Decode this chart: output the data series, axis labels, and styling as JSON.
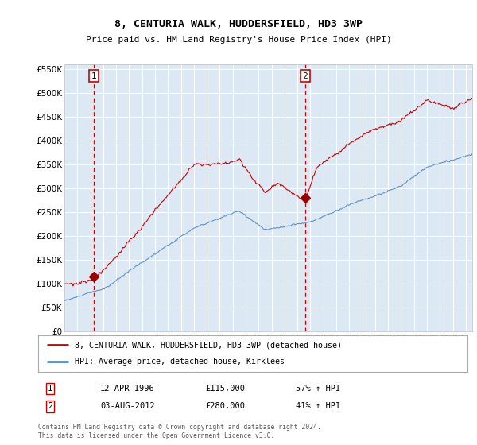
{
  "title": "8, CENTURIA WALK, HUDDERSFIELD, HD3 3WP",
  "subtitle": "Price paid vs. HM Land Registry's House Price Index (HPI)",
  "ylim": [
    0,
    560000
  ],
  "yticks": [
    0,
    50000,
    100000,
    150000,
    200000,
    250000,
    300000,
    350000,
    400000,
    450000,
    500000,
    550000
  ],
  "sale1": {
    "date_num": 1996.28,
    "price": 115000,
    "label": "1",
    "pct": "57% ↑ HPI",
    "date_str": "12-APR-1996"
  },
  "sale2": {
    "date_num": 2012.59,
    "price": 280000,
    "label": "2",
    "pct": "41% ↑ HPI",
    "date_str": "03-AUG-2012"
  },
  "line1_color": "#cc0000",
  "line2_color": "#5588bb",
  "vline_color": "#cc0000",
  "marker_color": "#990000",
  "box_color": "#cc0000",
  "legend_line1": "8, CENTURIA WALK, HUDDERSFIELD, HD3 3WP (detached house)",
  "legend_line2": "HPI: Average price, detached house, Kirklees",
  "footer": "Contains HM Land Registry data © Crown copyright and database right 2024.\nThis data is licensed under the Open Government Licence v3.0.",
  "background_color": "#ffffff",
  "plot_bg_color": "#dce9f5",
  "grid_color": "#ffffff",
  "xmin": 1994.0,
  "xmax": 2025.5
}
